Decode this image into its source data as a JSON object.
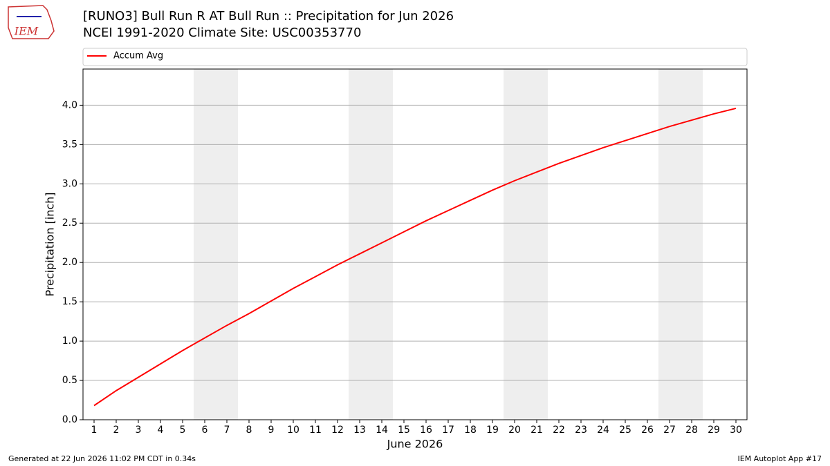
{
  "chart_data": {
    "type": "line",
    "logo_text": "IEM",
    "title": "[RUNO3] Bull Run R  AT Bull Run :: Precipitation for Jun 2026",
    "subtitle": "NCEI 1991-2020 Climate Site: USC00353770",
    "xlabel": "June 2026",
    "ylabel": "Precipitation [inch]",
    "x": [
      1,
      2,
      3,
      4,
      5,
      6,
      7,
      8,
      9,
      10,
      11,
      12,
      13,
      14,
      15,
      16,
      17,
      18,
      19,
      20,
      21,
      22,
      23,
      24,
      25,
      26,
      27,
      28,
      29,
      30
    ],
    "series": [
      {
        "name": "Accum Avg",
        "color": "#ff0000",
        "values": [
          0.18,
          0.37,
          0.54,
          0.71,
          0.88,
          1.04,
          1.2,
          1.35,
          1.51,
          1.67,
          1.82,
          1.97,
          2.11,
          2.25,
          2.39,
          2.53,
          2.66,
          2.79,
          2.92,
          3.04,
          3.15,
          3.26,
          3.36,
          3.46,
          3.55,
          3.64,
          3.73,
          3.81,
          3.89,
          3.96
        ]
      }
    ],
    "xlim": [
      0.5,
      30.5
    ],
    "xticks": [
      1,
      2,
      3,
      4,
      5,
      6,
      7,
      8,
      9,
      10,
      11,
      12,
      13,
      14,
      15,
      16,
      17,
      18,
      19,
      20,
      21,
      22,
      23,
      24,
      25,
      26,
      27,
      28,
      29,
      30
    ],
    "ylim": [
      0,
      4.46
    ],
    "yticks": [
      {
        "value": 0,
        "label": "0.0"
      },
      0.5,
      {
        "value": 1,
        "label": "1.0"
      },
      1.5,
      {
        "value": 2,
        "label": "2.0"
      },
      2.5,
      {
        "value": 3,
        "label": "3.0"
      },
      3.5,
      {
        "value": 4,
        "label": "4.0"
      }
    ],
    "grid": true,
    "shaded_spans": [
      [
        5.5,
        7.5
      ],
      [
        12.5,
        14.5
      ],
      [
        19.5,
        21.5
      ],
      [
        26.5,
        28.5
      ]
    ],
    "shade_color": "#eeeeee",
    "legend": "top",
    "footer_left": "Generated at 22 Jun 2026 11:02 PM CDT in 0.34s",
    "footer_right": "IEM Autoplot App #17"
  }
}
